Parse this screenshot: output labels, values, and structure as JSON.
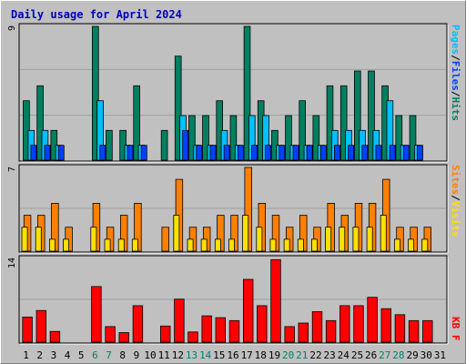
{
  "title": "Daily usage for April 2024",
  "colors": {
    "title": "#0000c0",
    "background": "#c0c0c0",
    "panel": "#c0c0c0",
    "grid": "#a0a0a0",
    "hits": "#008060",
    "files": "#00c0ff",
    "pages": "#0040ff",
    "visits": "#ff8000",
    "sites": "#ffe000",
    "kbytes": "#ff0000",
    "weekend_label": "#00806b",
    "label_text": "#000000"
  },
  "right_labels": {
    "top": [
      {
        "text": "Pages",
        "color_key": "files"
      },
      {
        "text": "/",
        "color_key": "label_text"
      },
      {
        "text": "Files",
        "color_key": "pages"
      },
      {
        "text": "/",
        "color_key": "label_text"
      },
      {
        "text": "Hits",
        "color_key": "hits"
      }
    ],
    "middle": [
      {
        "text": "Sites",
        "color_key": "visits"
      },
      {
        "text": "/",
        "color_key": "label_text"
      },
      {
        "text": "Visits",
        "color_key": "sites"
      }
    ],
    "bottom": [
      {
        "text": "KB F",
        "color_key": "kbytes"
      }
    ]
  },
  "chart_data": [
    {
      "type": "bar",
      "panel": "hits-files-pages",
      "max_label": "9",
      "ylim": [
        0,
        9
      ],
      "categories": [
        "1",
        "2",
        "3",
        "4",
        "5",
        "6",
        "7",
        "8",
        "9",
        "10",
        "11",
        "12",
        "13",
        "14",
        "15",
        "16",
        "17",
        "18",
        "19",
        "20",
        "21",
        "22",
        "23",
        "24",
        "25",
        "26",
        "27",
        "28",
        "29",
        "30",
        "31"
      ],
      "weekend_days": [
        "6",
        "7",
        "13",
        "14",
        "20",
        "21",
        "27",
        "28"
      ],
      "series": [
        {
          "key": "hits",
          "values": [
            4,
            5,
            2,
            0,
            0,
            9,
            2,
            2,
            5,
            0,
            2,
            7,
            3,
            3,
            4,
            3,
            9,
            4,
            2,
            3,
            4,
            3,
            5,
            5,
            6,
            6,
            5,
            3,
            3,
            0,
            0
          ]
        },
        {
          "key": "files",
          "values": [
            2,
            2,
            1,
            0,
            0,
            4,
            0,
            1,
            1,
            0,
            0,
            3,
            1,
            1,
            2,
            1,
            3,
            3,
            1,
            1,
            1,
            1,
            2,
            2,
            2,
            2,
            4,
            1,
            1,
            0,
            0
          ]
        },
        {
          "key": "pages",
          "values": [
            1,
            1,
            1,
            0,
            0,
            1,
            0,
            1,
            1,
            0,
            0,
            2,
            1,
            1,
            1,
            1,
            1,
            1,
            1,
            1,
            1,
            1,
            1,
            1,
            1,
            1,
            1,
            1,
            1,
            0,
            0
          ]
        }
      ]
    },
    {
      "type": "bar",
      "panel": "visits-sites",
      "max_label": "7",
      "ylim": [
        0,
        7
      ],
      "categories": [
        "1",
        "2",
        "3",
        "4",
        "5",
        "6",
        "7",
        "8",
        "9",
        "10",
        "11",
        "12",
        "13",
        "14",
        "15",
        "16",
        "17",
        "18",
        "19",
        "20",
        "21",
        "22",
        "23",
        "24",
        "25",
        "26",
        "27",
        "28",
        "29",
        "30",
        "31"
      ],
      "series": [
        {
          "key": "visits",
          "values": [
            3,
            3,
            4,
            2,
            0,
            4,
            2,
            3,
            4,
            0,
            2,
            6,
            2,
            2,
            3,
            3,
            7,
            4,
            3,
            2,
            3,
            2,
            4,
            3,
            4,
            4,
            6,
            2,
            2,
            2,
            0
          ]
        },
        {
          "key": "sites",
          "values": [
            2,
            2,
            1,
            1,
            0,
            2,
            1,
            1,
            1,
            0,
            0,
            3,
            1,
            1,
            1,
            1,
            3,
            2,
            1,
            1,
            1,
            1,
            2,
            2,
            2,
            2,
            3,
            1,
            1,
            1,
            0
          ]
        }
      ]
    },
    {
      "type": "bar",
      "panel": "kbytes",
      "max_label": "14",
      "ylim": [
        0,
        14
      ],
      "categories": [
        "1",
        "2",
        "3",
        "4",
        "5",
        "6",
        "7",
        "8",
        "9",
        "10",
        "11",
        "12",
        "13",
        "14",
        "15",
        "16",
        "17",
        "18",
        "19",
        "20",
        "21",
        "22",
        "23",
        "24",
        "25",
        "26",
        "27",
        "28",
        "29",
        "30",
        "31"
      ],
      "series": [
        {
          "key": "kbytes",
          "values": [
            4.2,
            5.3,
            1.8,
            0,
            0,
            9.3,
            2.6,
            1.6,
            6.1,
            0,
            2.7,
            7.2,
            1.7,
            4.4,
            4.1,
            3.6,
            10.5,
            6.1,
            13.8,
            2.6,
            3.2,
            5.1,
            3.6,
            6.1,
            6.1,
            7.5,
            5.6,
            4.6,
            3.6,
            3.6,
            0
          ]
        }
      ]
    }
  ]
}
